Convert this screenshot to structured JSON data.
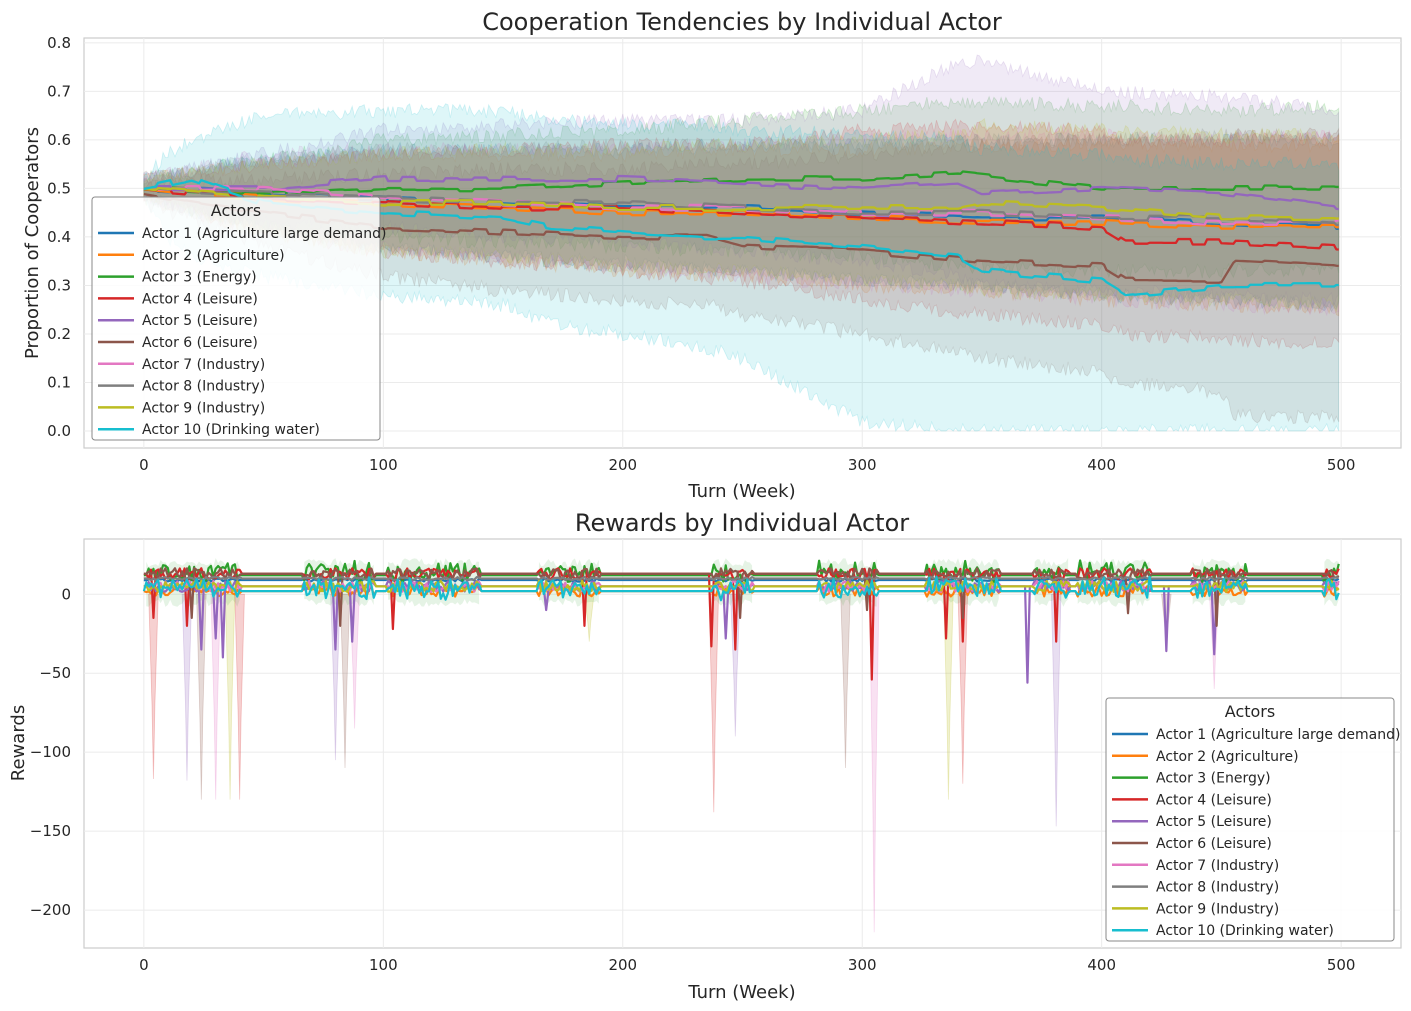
{
  "chart_data": [
    {
      "type": "line",
      "title": "Cooperation Tendencies by Individual Actor",
      "xlabel": "Turn (Week)",
      "ylabel": "Proportion of Cooperators",
      "xlim": [
        -25,
        525
      ],
      "ylim": [
        -0.035,
        0.81
      ],
      "xticks": [
        0,
        100,
        200,
        300,
        400,
        500
      ],
      "yticks": [
        0.0,
        0.1,
        0.2,
        0.3,
        0.4,
        0.5,
        0.6,
        0.7,
        0.8
      ],
      "ytick_labels": [
        "0.0",
        "0.1",
        "0.2",
        "0.3",
        "0.4",
        "0.5",
        "0.6",
        "0.7",
        "0.8"
      ],
      "grid": true,
      "legend": {
        "title": "Actors",
        "placement": "lower-left"
      },
      "shaded_band": "variability band around each line",
      "series": [
        {
          "name": "Actor 1 (Agriculture large demand)",
          "color": "#1f77b4",
          "x": [
            0,
            50,
            100,
            150,
            200,
            250,
            300,
            350,
            400,
            450,
            499
          ],
          "y": [
            0.5,
            0.49,
            0.48,
            0.47,
            0.46,
            0.46,
            0.45,
            0.44,
            0.44,
            0.43,
            0.42
          ],
          "lower": [
            0.48,
            0.42,
            0.38,
            0.36,
            0.34,
            0.33,
            0.31,
            0.3,
            0.28,
            0.27,
            0.26
          ],
          "upper": [
            0.52,
            0.56,
            0.58,
            0.58,
            0.58,
            0.59,
            0.59,
            0.6,
            0.6,
            0.6,
            0.6
          ]
        },
        {
          "name": "Actor 2 (Agriculture)",
          "color": "#ff7f0e",
          "x": [
            0,
            50,
            100,
            150,
            200,
            250,
            300,
            350,
            400,
            450,
            499
          ],
          "y": [
            0.5,
            0.48,
            0.47,
            0.46,
            0.45,
            0.45,
            0.44,
            0.43,
            0.43,
            0.42,
            0.42
          ],
          "lower": [
            0.48,
            0.41,
            0.37,
            0.35,
            0.33,
            0.32,
            0.3,
            0.29,
            0.27,
            0.26,
            0.25
          ],
          "upper": [
            0.52,
            0.55,
            0.57,
            0.57,
            0.57,
            0.58,
            0.58,
            0.59,
            0.59,
            0.59,
            0.59
          ]
        },
        {
          "name": "Actor 3 (Energy)",
          "color": "#2ca02c",
          "x": [
            0,
            50,
            100,
            150,
            200,
            250,
            300,
            340,
            400,
            450,
            499
          ],
          "y": [
            0.5,
            0.49,
            0.5,
            0.5,
            0.51,
            0.52,
            0.52,
            0.53,
            0.5,
            0.5,
            0.5
          ],
          "lower": [
            0.48,
            0.42,
            0.4,
            0.39,
            0.38,
            0.37,
            0.36,
            0.34,
            0.33,
            0.33,
            0.33
          ],
          "upper": [
            0.52,
            0.56,
            0.6,
            0.61,
            0.62,
            0.64,
            0.66,
            0.68,
            0.67,
            0.66,
            0.67
          ]
        },
        {
          "name": "Actor 4 (Leisure)",
          "color": "#d62728",
          "x": [
            0,
            50,
            100,
            150,
            200,
            250,
            300,
            350,
            400,
            410,
            450,
            499
          ],
          "y": [
            0.5,
            0.48,
            0.47,
            0.46,
            0.46,
            0.45,
            0.44,
            0.43,
            0.42,
            0.39,
            0.39,
            0.38
          ],
          "lower": [
            0.48,
            0.41,
            0.37,
            0.35,
            0.33,
            0.31,
            0.27,
            0.24,
            0.22,
            0.2,
            0.19,
            0.18
          ],
          "upper": [
            0.52,
            0.55,
            0.57,
            0.58,
            0.59,
            0.59,
            0.62,
            0.63,
            0.62,
            0.6,
            0.6,
            0.6
          ]
        },
        {
          "name": "Actor 5 (Leisure)",
          "color": "#9467bd",
          "x": [
            0,
            50,
            100,
            150,
            200,
            250,
            300,
            340,
            350,
            400,
            450,
            499
          ],
          "y": [
            0.5,
            0.5,
            0.52,
            0.52,
            0.52,
            0.51,
            0.5,
            0.51,
            0.49,
            0.5,
            0.49,
            0.46
          ],
          "lower": [
            0.48,
            0.43,
            0.42,
            0.4,
            0.39,
            0.37,
            0.35,
            0.32,
            0.3,
            0.29,
            0.28,
            0.27
          ],
          "upper": [
            0.52,
            0.57,
            0.62,
            0.63,
            0.64,
            0.64,
            0.66,
            0.76,
            0.76,
            0.7,
            0.69,
            0.66
          ]
        },
        {
          "name": "Actor 6 (Leisure)",
          "color": "#8c564b",
          "x": [
            0,
            50,
            100,
            150,
            200,
            235,
            250,
            300,
            350,
            400,
            410,
            450,
            455,
            499
          ],
          "y": [
            0.49,
            0.45,
            0.42,
            0.41,
            0.4,
            0.4,
            0.38,
            0.37,
            0.35,
            0.34,
            0.31,
            0.31,
            0.35,
            0.34
          ],
          "lower": [
            0.47,
            0.38,
            0.32,
            0.29,
            0.27,
            0.26,
            0.24,
            0.2,
            0.15,
            0.12,
            0.1,
            0.08,
            0.03,
            0.03
          ],
          "upper": [
            0.51,
            0.52,
            0.53,
            0.54,
            0.54,
            0.55,
            0.55,
            0.57,
            0.59,
            0.6,
            0.6,
            0.6,
            0.61,
            0.61
          ]
        },
        {
          "name": "Actor 7 (Industry)",
          "color": "#e377c2",
          "x": [
            0,
            50,
            100,
            150,
            200,
            250,
            300,
            350,
            400,
            450,
            499
          ],
          "y": [
            0.5,
            0.5,
            0.48,
            0.47,
            0.46,
            0.46,
            0.45,
            0.45,
            0.44,
            0.43,
            0.43
          ],
          "lower": [
            0.48,
            0.43,
            0.38,
            0.36,
            0.34,
            0.32,
            0.3,
            0.29,
            0.27,
            0.26,
            0.25
          ],
          "upper": [
            0.52,
            0.57,
            0.58,
            0.58,
            0.58,
            0.59,
            0.6,
            0.61,
            0.61,
            0.6,
            0.61
          ]
        },
        {
          "name": "Actor 8 (Industry)",
          "color": "#7f7f7f",
          "x": [
            0,
            50,
            100,
            150,
            200,
            250,
            300,
            350,
            400,
            450,
            499
          ],
          "y": [
            0.5,
            0.49,
            0.48,
            0.47,
            0.47,
            0.46,
            0.45,
            0.45,
            0.44,
            0.44,
            0.43
          ],
          "lower": [
            0.48,
            0.42,
            0.38,
            0.36,
            0.35,
            0.33,
            0.31,
            0.3,
            0.28,
            0.27,
            0.26
          ],
          "upper": [
            0.52,
            0.56,
            0.58,
            0.58,
            0.59,
            0.59,
            0.59,
            0.6,
            0.6,
            0.61,
            0.6
          ]
        },
        {
          "name": "Actor 9 (Industry)",
          "color": "#bcbd22",
          "x": [
            0,
            50,
            100,
            150,
            200,
            250,
            300,
            340,
            350,
            400,
            450,
            499
          ],
          "y": [
            0.5,
            0.48,
            0.47,
            0.47,
            0.46,
            0.46,
            0.46,
            0.46,
            0.47,
            0.46,
            0.44,
            0.44
          ],
          "lower": [
            0.48,
            0.41,
            0.37,
            0.36,
            0.34,
            0.33,
            0.31,
            0.3,
            0.29,
            0.28,
            0.27,
            0.26
          ],
          "upper": [
            0.52,
            0.55,
            0.57,
            0.58,
            0.58,
            0.59,
            0.6,
            0.61,
            0.63,
            0.62,
            0.61,
            0.61
          ]
        },
        {
          "name": "Actor 10 (Drinking water)",
          "color": "#17becf",
          "x": [
            0,
            10,
            20,
            50,
            100,
            150,
            170,
            200,
            235,
            250,
            300,
            340,
            350,
            400,
            410,
            450,
            470,
            499
          ],
          "y": [
            0.5,
            0.51,
            0.52,
            0.47,
            0.45,
            0.44,
            0.42,
            0.41,
            0.4,
            0.4,
            0.38,
            0.36,
            0.33,
            0.31,
            0.28,
            0.3,
            0.3,
            0.3
          ],
          "lower": [
            0.48,
            0.4,
            0.36,
            0.32,
            0.28,
            0.26,
            0.22,
            0.2,
            0.17,
            0.15,
            0.02,
            0.0,
            0.0,
            0.0,
            0.0,
            0.0,
            0.0,
            0.0
          ],
          "upper": [
            0.52,
            0.57,
            0.6,
            0.65,
            0.66,
            0.66,
            0.64,
            0.63,
            0.63,
            0.62,
            0.61,
            0.6,
            0.58,
            0.57,
            0.56,
            0.55,
            0.55,
            0.55
          ]
        }
      ]
    },
    {
      "type": "line",
      "title": "Rewards by Individual Actor",
      "xlabel": "Turn (Week)",
      "ylabel": "Rewards",
      "xlim": [
        -25,
        525
      ],
      "ylim": [
        -224,
        35
      ],
      "xticks": [
        0,
        100,
        200,
        300,
        400,
        500
      ],
      "yticks": [
        0,
        -50,
        -100,
        -150,
        -200
      ],
      "ytick_labels": [
        "0",
        "−50",
        "−100",
        "−150",
        "−200"
      ],
      "grid": true,
      "legend": {
        "title": "Actors",
        "placement": "center-right"
      },
      "active_periods": [
        [
          1,
          40
        ],
        [
          67,
          96
        ],
        [
          102,
          140
        ],
        [
          165,
          190
        ],
        [
          238,
          254
        ],
        [
          282,
          306
        ],
        [
          327,
          357
        ],
        [
          372,
          386
        ],
        [
          390,
          420
        ],
        [
          438,
          460
        ],
        [
          493,
          499
        ]
      ],
      "series": [
        {
          "name": "Actor 1 (Agriculture large demand)",
          "color": "#1f77b4",
          "baseline": 9,
          "dips": []
        },
        {
          "name": "Actor 2 (Agriculture)",
          "color": "#ff7f0e",
          "baseline": 2,
          "dips": []
        },
        {
          "name": "Actor 3 (Energy)",
          "color": "#2ca02c",
          "baseline": 12,
          "dips": []
        },
        {
          "name": "Actor 4 (Leisure)",
          "color": "#d62728",
          "baseline": 13,
          "dips": [
            [
              4,
              -15
            ],
            [
              18,
              -20
            ],
            [
              104,
              -22
            ],
            [
              184,
              -20
            ],
            [
              237,
              -33
            ],
            [
              247,
              -35
            ],
            [
              304,
              -54
            ],
            [
              335,
              -28
            ],
            [
              342,
              -30
            ],
            [
              381,
              -30
            ]
          ]
        },
        {
          "name": "Actor 5 (Leisure)",
          "color": "#9467bd",
          "baseline": 5,
          "dips": [
            [
              24,
              -35
            ],
            [
              30,
              -28
            ],
            [
              33,
              -40
            ],
            [
              80,
              -35
            ],
            [
              87,
              -30
            ],
            [
              168,
              -10
            ],
            [
              243,
              -28
            ],
            [
              369,
              -56
            ],
            [
              427,
              -36
            ],
            [
              447,
              -38
            ]
          ]
        },
        {
          "name": "Actor 6 (Leisure)",
          "color": "#8c564b",
          "baseline": 13,
          "dips": [
            [
              20,
              -15
            ],
            [
              82,
              -20
            ],
            [
              249,
              -15
            ],
            [
              302,
              -10
            ],
            [
              342,
              -15
            ],
            [
              411,
              -12
            ],
            [
              448,
              -20
            ]
          ]
        },
        {
          "name": "Actor 7 (Industry)",
          "color": "#e377c2",
          "baseline": 5,
          "dips": []
        },
        {
          "name": "Actor 8 (Industry)",
          "color": "#7f7f7f",
          "baseline": 10,
          "dips": []
        },
        {
          "name": "Actor 9 (Industry)",
          "color": "#bcbd22",
          "baseline": 5,
          "dips": []
        },
        {
          "name": "Actor 10 (Drinking water)",
          "color": "#17becf",
          "baseline": 2,
          "dips": []
        }
      ],
      "band_spikes": [
        [
          4,
          -117
        ],
        [
          18,
          -118
        ],
        [
          24,
          -130
        ],
        [
          30,
          -130
        ],
        [
          36,
          -130
        ],
        [
          40,
          -130
        ],
        [
          80,
          -105
        ],
        [
          84,
          -110
        ],
        [
          88,
          -85
        ],
        [
          186,
          -30
        ],
        [
          238,
          -138
        ],
        [
          247,
          -90
        ],
        [
          293,
          -110
        ],
        [
          305,
          -214
        ],
        [
          336,
          -130
        ],
        [
          342,
          -120
        ],
        [
          381,
          -147
        ],
        [
          427,
          -35
        ],
        [
          447,
          -60
        ]
      ]
    }
  ]
}
